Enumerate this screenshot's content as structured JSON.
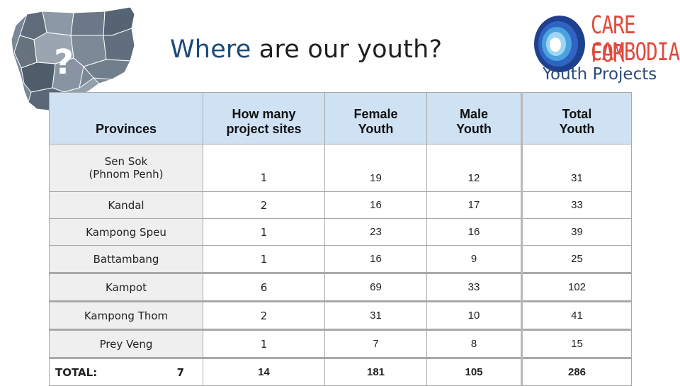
{
  "title": {
    "highlight": "Where",
    "rest": " are our youth?"
  },
  "map": {
    "icon": "cambodia-province-map",
    "overlay_text": "?"
  },
  "logo": {
    "line1": "CARE FOR",
    "line2": "CAMBODIA",
    "subtitle": "Youth Projects",
    "brand_red": "#e04a3c",
    "brand_blue": "#2b4a7a"
  },
  "table": {
    "headers": {
      "provinces": "Provinces",
      "sites": "How many\nproject sites",
      "female": "Female\nYouth",
      "male": "Male\nYouth",
      "total": "Total\nYouth"
    },
    "rows": [
      {
        "province": "Sen Sok\n(Phnom Penh)",
        "sites": "1",
        "female": "19",
        "male": "12",
        "total": "31"
      },
      {
        "province": "Kandal",
        "sites": "2",
        "female": "16",
        "male": "17",
        "total": "33"
      },
      {
        "province": "Kampong Speu",
        "sites": "1",
        "female": "23",
        "male": "16",
        "total": "39"
      },
      {
        "province": "Battambang",
        "sites": "1",
        "female": "16",
        "male": "9",
        "total": "25"
      },
      {
        "province": "Kampot",
        "sites": "6",
        "female": "69",
        "male": "33",
        "total": "102"
      },
      {
        "province": "Kampong Thom",
        "sites": "2",
        "female": "31",
        "male": "10",
        "total": "41"
      },
      {
        "province": "Prey Veng",
        "sites": "1",
        "female": "7",
        "male": "8",
        "total": "15"
      }
    ],
    "total": {
      "label": "TOTAL:",
      "provinces_count": "7",
      "sites": "14",
      "female": "181",
      "male": "105",
      "total": "286"
    },
    "header_color": "#cfe2f3",
    "province_col_color": "#efefef"
  }
}
